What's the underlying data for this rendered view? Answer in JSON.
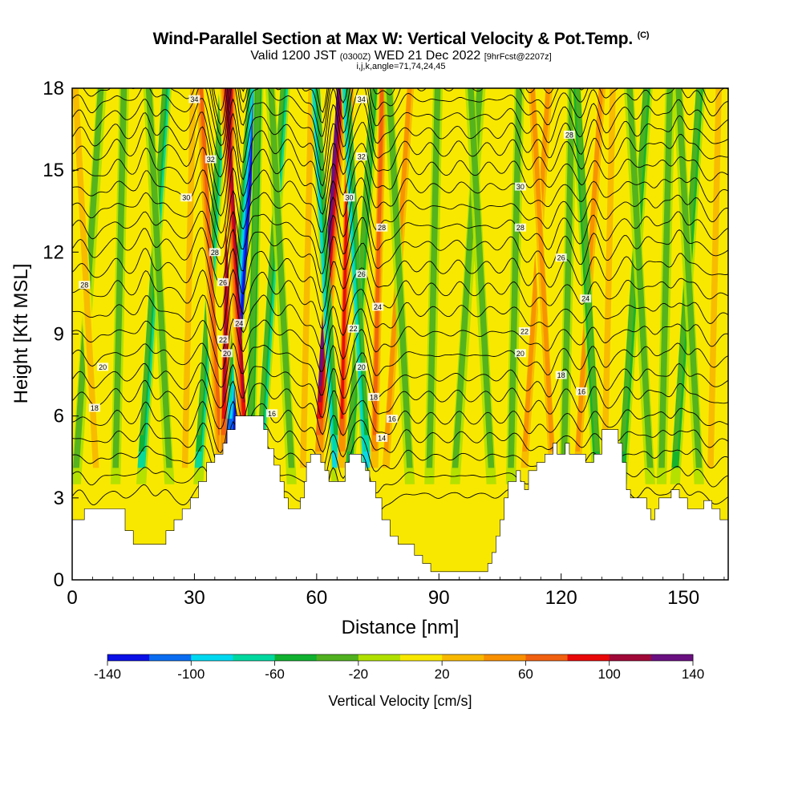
{
  "header": {
    "title": "Wind-Parallel Section at Max W: Vertical Velocity & Pot.Temp.",
    "title_mark": "(C)",
    "valid_prefix": "Valid 1200 JST",
    "valid_utc": "(0300Z)",
    "valid_date": "WED 21 Dec 2022",
    "forecast": "[9hrFcst@2207z]",
    "indices": "i,j,k,angle=71,74,24,45"
  },
  "chart_data": {
    "type": "heatmap",
    "xlabel": "Distance [nm]",
    "ylabel": "Height [Kft MSL]",
    "xlim": [
      0,
      161
    ],
    "ylim": [
      0,
      18
    ],
    "x_ticks": [
      0,
      30,
      60,
      90,
      120,
      150
    ],
    "y_ticks": [
      0,
      3,
      6,
      9,
      12,
      15,
      18
    ],
    "colorbar": {
      "label": "Vertical Velocity [cm/s]",
      "ticks": [
        -140,
        -100,
        -60,
        -20,
        20,
        60,
        100,
        140
      ],
      "levels": [
        -140,
        -120,
        -100,
        -80,
        -60,
        -40,
        -20,
        0,
        20,
        40,
        60,
        80,
        100,
        120,
        140
      ],
      "colors": [
        "#0a10e6",
        "#0a6cf0",
        "#00d8f0",
        "#00d8a0",
        "#10b030",
        "#50b020",
        "#b0e000",
        "#f8e800",
        "#f8b800",
        "#f89000",
        "#f06010",
        "#e80808",
        "#a00838",
        "#6a1080"
      ]
    },
    "background_color": "#f8e800",
    "updraft_bands": [
      {
        "x": 2,
        "peak": -25
      },
      {
        "x": 5,
        "peak": 20
      },
      {
        "x": 11,
        "peak": -35
      },
      {
        "x": 18,
        "peak": -70
      },
      {
        "x": 23,
        "peak": -25
      },
      {
        "x": 28,
        "peak": 30
      },
      {
        "x": 32,
        "peak": -75
      },
      {
        "x": 35.5,
        "peak": 70
      },
      {
        "x": 37.5,
        "peak": 110
      },
      {
        "x": 39.5,
        "peak": -145
      },
      {
        "x": 41.5,
        "peak": 115
      },
      {
        "x": 44,
        "peak": -45
      },
      {
        "x": 47,
        "peak": -60
      },
      {
        "x": 53,
        "peak": -35
      },
      {
        "x": 57,
        "peak": 30
      },
      {
        "x": 61.5,
        "peak": 150
      },
      {
        "x": 64,
        "peak": -80
      },
      {
        "x": 66.5,
        "peak": 95
      },
      {
        "x": 69,
        "peak": -50
      },
      {
        "x": 71.5,
        "peak": -95
      },
      {
        "x": 74.5,
        "peak": 60
      },
      {
        "x": 78,
        "peak": 40
      },
      {
        "x": 82,
        "peak": -35
      },
      {
        "x": 88,
        "peak": -25
      },
      {
        "x": 95,
        "peak": -30
      },
      {
        "x": 102,
        "peak": -25
      },
      {
        "x": 108,
        "peak": -35
      },
      {
        "x": 112,
        "peak": 40
      },
      {
        "x": 117,
        "peak": 55
      },
      {
        "x": 121,
        "peak": -35
      },
      {
        "x": 125,
        "peak": 45
      },
      {
        "x": 128,
        "peak": -50
      },
      {
        "x": 131,
        "peak": 30
      },
      {
        "x": 136,
        "peak": -40
      },
      {
        "x": 141,
        "peak": -35
      },
      {
        "x": 145,
        "peak": -30
      },
      {
        "x": 149,
        "peak": -55
      },
      {
        "x": 153,
        "peak": -35
      },
      {
        "x": 157,
        "peak": 25
      }
    ],
    "terrain": [
      [
        0,
        2.2
      ],
      [
        3,
        2.6
      ],
      [
        8,
        2.6
      ],
      [
        11,
        2.6
      ],
      [
        13,
        1.8
      ],
      [
        15,
        1.3
      ],
      [
        20,
        1.3
      ],
      [
        23,
        1.8
      ],
      [
        25,
        2.2
      ],
      [
        27,
        2.6
      ],
      [
        29,
        3.0
      ],
      [
        31,
        3.6
      ],
      [
        33,
        4.3
      ],
      [
        35,
        4.6
      ],
      [
        37,
        5.0
      ],
      [
        38,
        5.5
      ],
      [
        40,
        6.0
      ],
      [
        45,
        6.0
      ],
      [
        47,
        5.5
      ],
      [
        48,
        4.8
      ],
      [
        49.5,
        4.2
      ],
      [
        51,
        3.6
      ],
      [
        52,
        3.0
      ],
      [
        53,
        2.6
      ],
      [
        55,
        2.6
      ],
      [
        56,
        3.0
      ],
      [
        57,
        3.6
      ],
      [
        57.5,
        4.3
      ],
      [
        58.5,
        4.6
      ],
      [
        60,
        4.6
      ],
      [
        61,
        4.3
      ],
      [
        62,
        4.0
      ],
      [
        63,
        3.6
      ],
      [
        66,
        3.6
      ],
      [
        67,
        4.3
      ],
      [
        68,
        4.6
      ],
      [
        70,
        4.6
      ],
      [
        71,
        4.3
      ],
      [
        72,
        4.0
      ],
      [
        73,
        3.6
      ],
      [
        74.5,
        3.0
      ],
      [
        76,
        2.2
      ],
      [
        78,
        1.6
      ],
      [
        80,
        1.3
      ],
      [
        84,
        0.9
      ],
      [
        86,
        0.6
      ],
      [
        88,
        0.3
      ],
      [
        100,
        0.3
      ],
      [
        102,
        0.6
      ],
      [
        103,
        1.0
      ],
      [
        104,
        1.6
      ],
      [
        105,
        2.2
      ],
      [
        106,
        3.0
      ],
      [
        107,
        3.6
      ],
      [
        109,
        4.0
      ],
      [
        110,
        3.6
      ],
      [
        111,
        3.3
      ],
      [
        112,
        4.0
      ],
      [
        114,
        4.3
      ],
      [
        116,
        4.6
      ],
      [
        118,
        5.0
      ],
      [
        119,
        4.6
      ],
      [
        121,
        5.0
      ],
      [
        122,
        4.6
      ],
      [
        124,
        4.6
      ],
      [
        126,
        4.3
      ],
      [
        128,
        4.6
      ],
      [
        130,
        5.5
      ],
      [
        133,
        5.5
      ],
      [
        134,
        5.0
      ],
      [
        135,
        4.3
      ],
      [
        136,
        3.3
      ],
      [
        137,
        3.0
      ],
      [
        139,
        3.0
      ],
      [
        141,
        2.6
      ],
      [
        142,
        2.2
      ],
      [
        143,
        2.6
      ],
      [
        144,
        3.0
      ],
      [
        147,
        3.3
      ],
      [
        149,
        3.0
      ],
      [
        151,
        2.6
      ],
      [
        155,
        2.9
      ],
      [
        157,
        2.6
      ],
      [
        159,
        2.2
      ],
      [
        161,
        2.0
      ]
    ],
    "theta_contours": {
      "levels": [
        12,
        13,
        14,
        15,
        16,
        17,
        18,
        19,
        20,
        21,
        22,
        23,
        24,
        25,
        26,
        27,
        28,
        29,
        30,
        31,
        32,
        33,
        34,
        35
      ],
      "base_heights_kft": [
        3.0,
        3.7,
        4.4,
        5.1,
        5.8,
        6.6,
        7.3,
        8.1,
        8.9,
        9.7,
        10.5,
        11.3,
        12.1,
        12.8,
        13.5,
        14.2,
        14.9,
        15.6,
        16.2,
        16.8,
        17.4,
        17.9,
        18.4,
        18.9
      ],
      "labels": [
        {
          "text": "34",
          "x": 30,
          "y": 17.6
        },
        {
          "text": "32",
          "x": 34,
          "y": 15.4
        },
        {
          "text": "30",
          "x": 28,
          "y": 14.0
        },
        {
          "text": "28",
          "x": 35,
          "y": 12.0
        },
        {
          "text": "26",
          "x": 37,
          "y": 10.9
        },
        {
          "text": "24",
          "x": 41,
          "y": 9.4
        },
        {
          "text": "22",
          "x": 37,
          "y": 8.8
        },
        {
          "text": "20",
          "x": 38,
          "y": 8.3
        },
        {
          "text": "28",
          "x": 3,
          "y": 10.8
        },
        {
          "text": "20",
          "x": 7.5,
          "y": 7.8
        },
        {
          "text": "18",
          "x": 5.5,
          "y": 6.3
        },
        {
          "text": "16",
          "x": 49,
          "y": 6.1
        },
        {
          "text": "34",
          "x": 71,
          "y": 17.6
        },
        {
          "text": "32",
          "x": 71,
          "y": 15.5
        },
        {
          "text": "30",
          "x": 68,
          "y": 14.0
        },
        {
          "text": "28",
          "x": 76,
          "y": 12.9
        },
        {
          "text": "26",
          "x": 71,
          "y": 11.2
        },
        {
          "text": "24",
          "x": 75,
          "y": 10.0
        },
        {
          "text": "22",
          "x": 69,
          "y": 9.2
        },
        {
          "text": "20",
          "x": 71,
          "y": 7.8
        },
        {
          "text": "18",
          "x": 74,
          "y": 6.7
        },
        {
          "text": "16",
          "x": 78.5,
          "y": 5.9
        },
        {
          "text": "14",
          "x": 76,
          "y": 5.2
        },
        {
          "text": "28",
          "x": 122,
          "y": 16.3
        },
        {
          "text": "30",
          "x": 110,
          "y": 14.4
        },
        {
          "text": "28",
          "x": 110,
          "y": 12.9
        },
        {
          "text": "26",
          "x": 120,
          "y": 11.8
        },
        {
          "text": "24",
          "x": 126,
          "y": 10.3
        },
        {
          "text": "22",
          "x": 111,
          "y": 9.1
        },
        {
          "text": "20",
          "x": 110,
          "y": 8.3
        },
        {
          "text": "18",
          "x": 120,
          "y": 7.5
        },
        {
          "text": "16",
          "x": 125,
          "y": 6.9
        }
      ]
    }
  }
}
